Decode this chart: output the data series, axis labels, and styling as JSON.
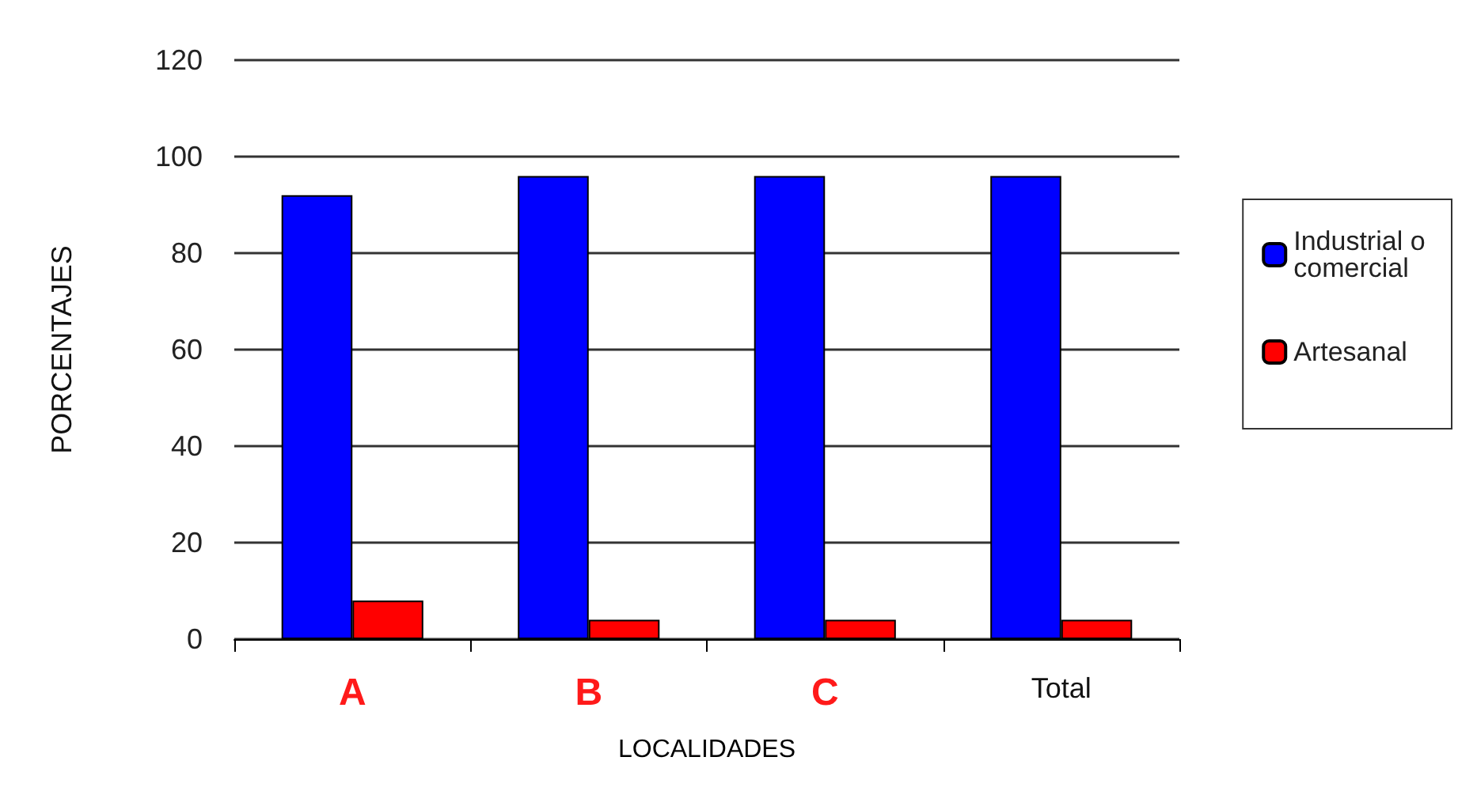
{
  "chart_data": {
    "type": "bar",
    "xlabel": "LOCALIDADES",
    "ylabel": "PORCENTAJES",
    "categories": [
      "A",
      "B",
      "C",
      "Total"
    ],
    "series": [
      {
        "name": "Industrial o comercial",
        "color": "#0000ff",
        "values": [
          92,
          96,
          96,
          96
        ]
      },
      {
        "name": "Artesanal",
        "color": "#ff0000",
        "values": [
          8,
          4,
          4,
          4
        ]
      }
    ],
    "ylim": [
      0,
      120
    ],
    "yticks": [
      0,
      20,
      40,
      60,
      80,
      100,
      120
    ],
    "grid": "y",
    "legend": "right"
  }
}
